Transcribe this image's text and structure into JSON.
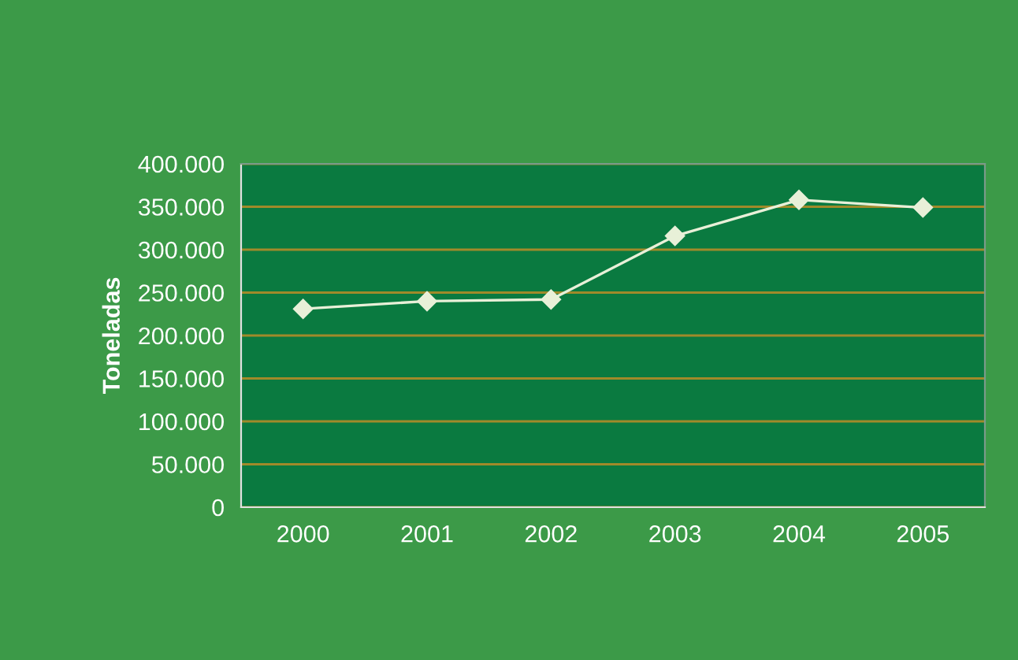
{
  "chart_data": {
    "type": "line",
    "ylabel": "Toneladas",
    "categories": [
      "2000",
      "2001",
      "2002",
      "2003",
      "2004",
      "2005"
    ],
    "series": [
      {
        "color": "#e8f0d8",
        "values": [
          231000,
          240000,
          242000,
          316000,
          358000,
          349000
        ]
      }
    ],
    "ylim": [
      0,
      400000
    ],
    "yticks": [
      0,
      {
        "value": 50000,
        "label": "50.000"
      },
      {
        "value": 100000,
        "label": "100.000"
      },
      {
        "value": 150000,
        "label": "150.000"
      },
      {
        "value": 200000,
        "label": "200.000"
      },
      {
        "value": 250000,
        "label": "250.000"
      },
      {
        "value": 300000,
        "label": "300.000"
      },
      {
        "value": 350000,
        "label": "350.000"
      },
      {
        "value": 400000,
        "label": "400.000"
      }
    ],
    "grid": "y",
    "marker": "diamond",
    "line_style": "solid"
  }
}
